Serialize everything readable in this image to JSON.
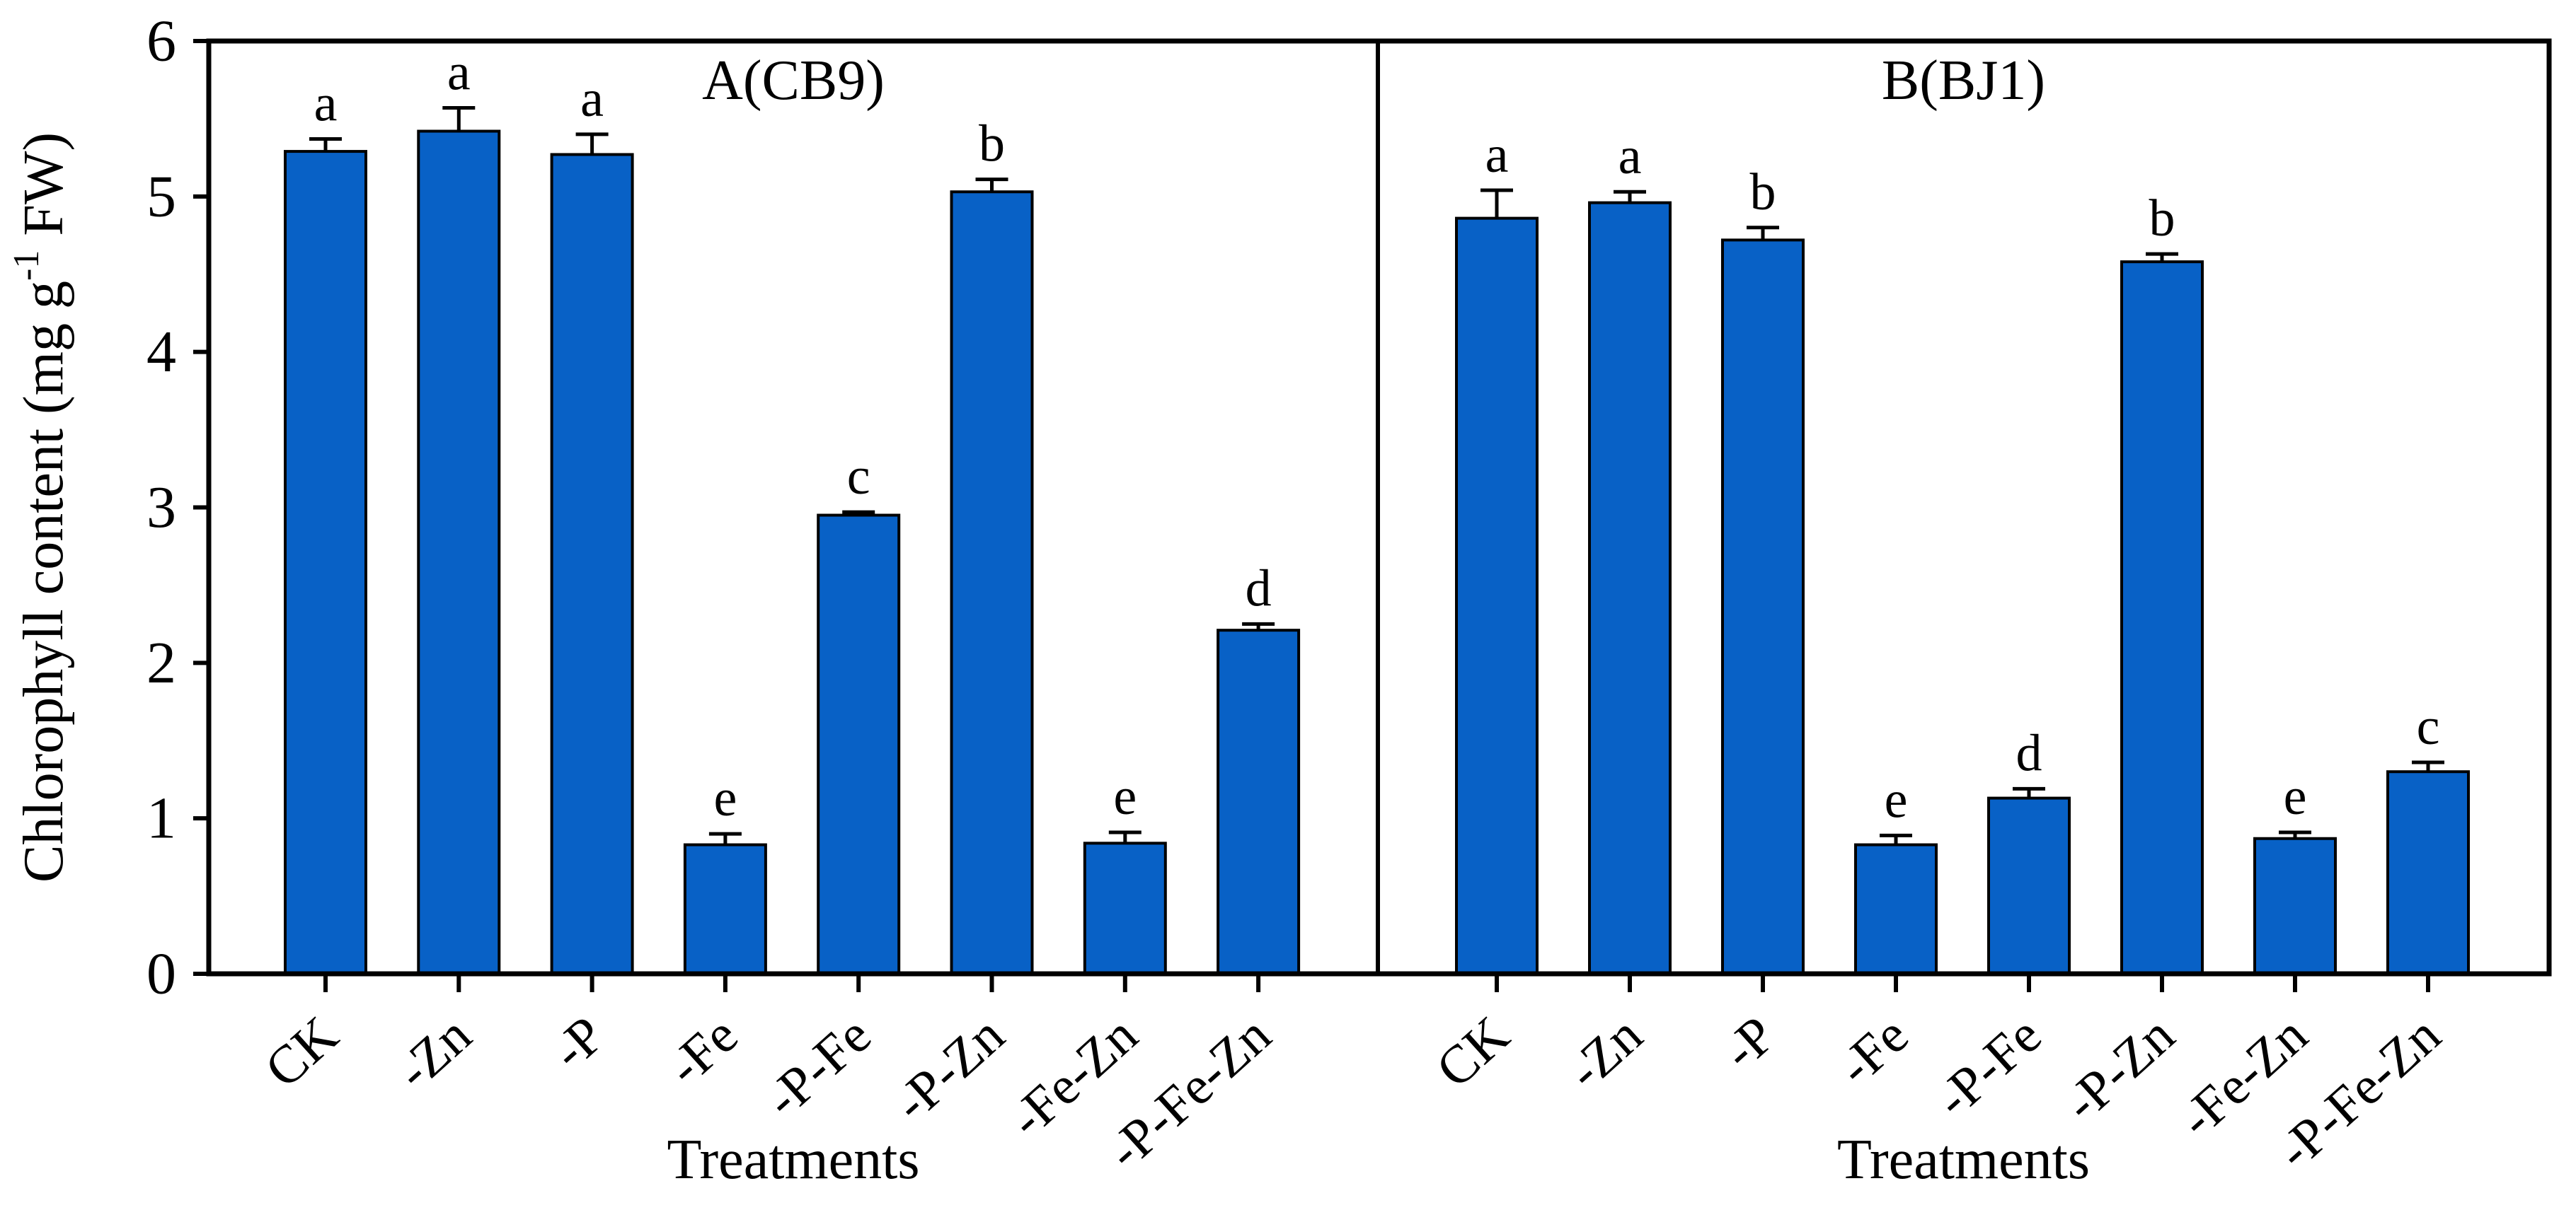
{
  "figure": {
    "background_color": "#ffffff",
    "axis_color": "#000000"
  },
  "chart_data": {
    "type": "bar",
    "title": "",
    "xlabel": "Treatments",
    "ylabel": "Chlorophyll content (mg g-1 FW)",
    "ylabel_parts": {
      "main": "Chlorophyll content (mg g",
      "sup": "-1",
      "suffix": " FW)"
    },
    "ylim": [
      0,
      6
    ],
    "yticks": [
      0,
      1,
      2,
      3,
      4,
      5,
      6
    ],
    "grid": false,
    "legend": "none",
    "bar_color": "#0861c6",
    "bar_edge_color": "#000000",
    "error_bar_color": "#000000",
    "error_bar_direction": "up",
    "categories": [
      "CK",
      "-Zn",
      "-P",
      "-Fe",
      "-P-Fe",
      "-P-Zn",
      "-Fe-Zn",
      "-P-Fe-Zn"
    ],
    "panels": [
      {
        "label": "A(CB9)",
        "xlabel": "Treatments",
        "sig_letters": [
          "a",
          "a",
          "a",
          "e",
          "c",
          "b",
          "e",
          "d"
        ],
        "series": [
          {
            "name": "Chlorophyll content",
            "values": [
              5.29,
              5.42,
              5.27,
              0.83,
              2.95,
              5.03,
              0.84,
              2.21
            ],
            "errors": [
              0.08,
              0.15,
              0.13,
              0.07,
              0.02,
              0.08,
              0.07,
              0.04
            ]
          }
        ]
      },
      {
        "label": "B(BJ1)",
        "xlabel": "Treatments",
        "sig_letters": [
          "a",
          "a",
          "b",
          "e",
          "d",
          "b",
          "e",
          "c"
        ],
        "series": [
          {
            "name": "Chlorophyll content",
            "values": [
              4.86,
              4.96,
              4.72,
              0.83,
              1.13,
              4.58,
              0.87,
              1.3
            ],
            "errors": [
              0.18,
              0.07,
              0.08,
              0.06,
              0.06,
              0.05,
              0.04,
              0.06
            ]
          }
        ]
      }
    ]
  }
}
